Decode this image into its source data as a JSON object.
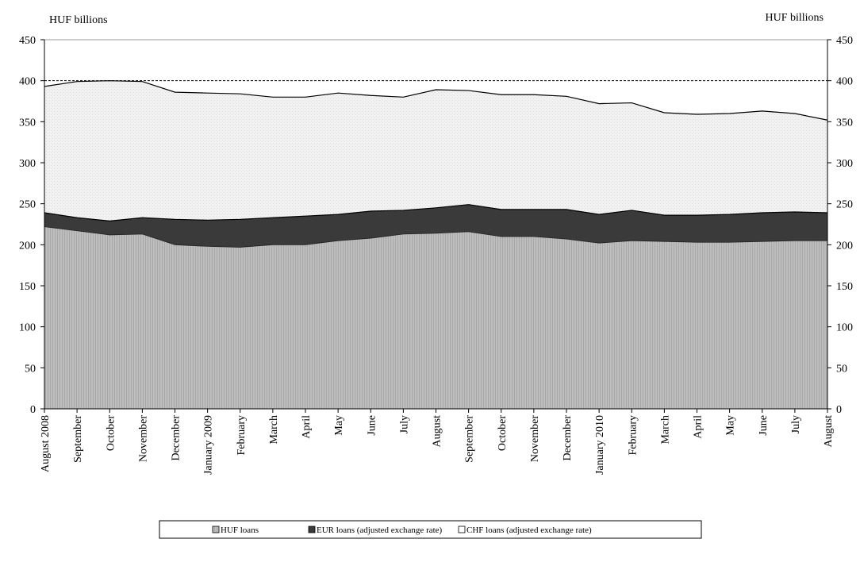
{
  "chart_data": {
    "type": "area",
    "stacked": true,
    "title": "",
    "ylabel_left": "HUF billions",
    "ylabel_right": "HUF billions",
    "ylim": [
      0,
      450
    ],
    "yticks": [
      0,
      50,
      100,
      150,
      200,
      250,
      300,
      350,
      400,
      450
    ],
    "reference_line": 400,
    "grid": false,
    "legend_position": "bottom",
    "categories": [
      "August 2008",
      "September",
      "October",
      "November",
      "December",
      "January 2009",
      "February",
      "March",
      "April",
      "May",
      "June",
      "July",
      "August",
      "September",
      "October",
      "November",
      "December",
      "January 2010",
      "February",
      "March",
      "April",
      "May",
      "June",
      "July",
      "August"
    ],
    "series": [
      {
        "name": "HUF loans",
        "color": "#c0c0c0",
        "values": [
          222,
          217,
          212,
          213,
          200,
          198,
          197,
          200,
          200,
          205,
          208,
          213,
          214,
          216,
          210,
          210,
          207,
          202,
          205,
          204,
          203,
          203,
          204,
          205,
          205
        ]
      },
      {
        "name": "EUR loans (adjusted exchange rate)",
        "color": "#3a3a3a",
        "values": [
          17,
          16,
          17,
          20,
          31,
          32,
          34,
          33,
          35,
          32,
          33,
          29,
          31,
          33,
          33,
          33,
          36,
          35,
          37,
          32,
          33,
          34,
          35,
          35,
          34
        ]
      },
      {
        "name": "CHF loans (adjusted exchange rate)",
        "color": "#ececec",
        "values": [
          154,
          166,
          171,
          166,
          155,
          155,
          153,
          147,
          145,
          148,
          141,
          138,
          144,
          139,
          140,
          140,
          138,
          135,
          131,
          125,
          123,
          123,
          124,
          120,
          113
        ]
      }
    ]
  }
}
